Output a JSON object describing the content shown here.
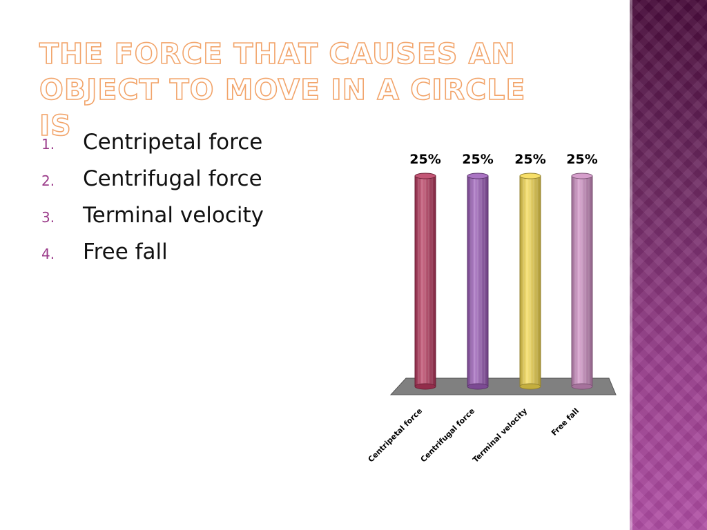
{
  "slide": {
    "title": "The force that causes an object to move in a circle is"
  },
  "options": [
    {
      "number": "1.",
      "label": "Centripetal force"
    },
    {
      "number": "2.",
      "label": "Centrifugal force"
    },
    {
      "number": "3.",
      "label": "Terminal velocity"
    },
    {
      "number": "4.",
      "label": "Free fall"
    }
  ],
  "colors": {
    "title_outline": "#f2a46a",
    "number_color": "#9b3c8a",
    "band_top": "#4a0d3c",
    "band_bottom": "#b04ea4",
    "floor": "#808080"
  },
  "chart_data": {
    "type": "bar",
    "style": "3d cylinders",
    "categories": [
      "Centripetal force",
      "Centrifugal force",
      "Terminal velocity",
      "Free fall"
    ],
    "values": [
      25,
      25,
      25,
      25
    ],
    "data_labels": [
      "25%",
      "25%",
      "25%",
      "25%"
    ],
    "colors": [
      "#b8385e",
      "#9b5cb8",
      "#f5d94e",
      "#cf8ec3"
    ],
    "ylim": [
      0,
      25
    ],
    "grid": false,
    "legend": "none",
    "xlabel": "",
    "ylabel": ""
  }
}
